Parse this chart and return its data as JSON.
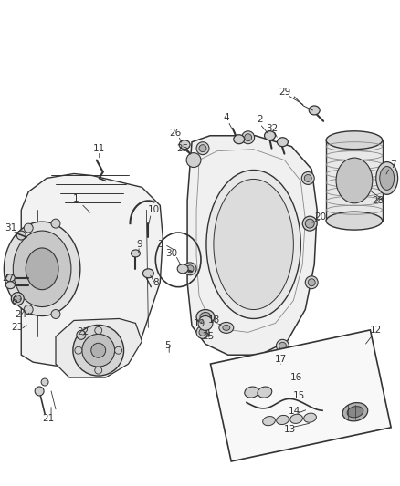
{
  "bg_color": "#ffffff",
  "fig_width": 4.38,
  "fig_height": 5.33,
  "dpi": 100,
  "dark": "#333333",
  "gray1": "#d0d0d0",
  "gray2": "#b0b0b0",
  "gray3": "#888888"
}
